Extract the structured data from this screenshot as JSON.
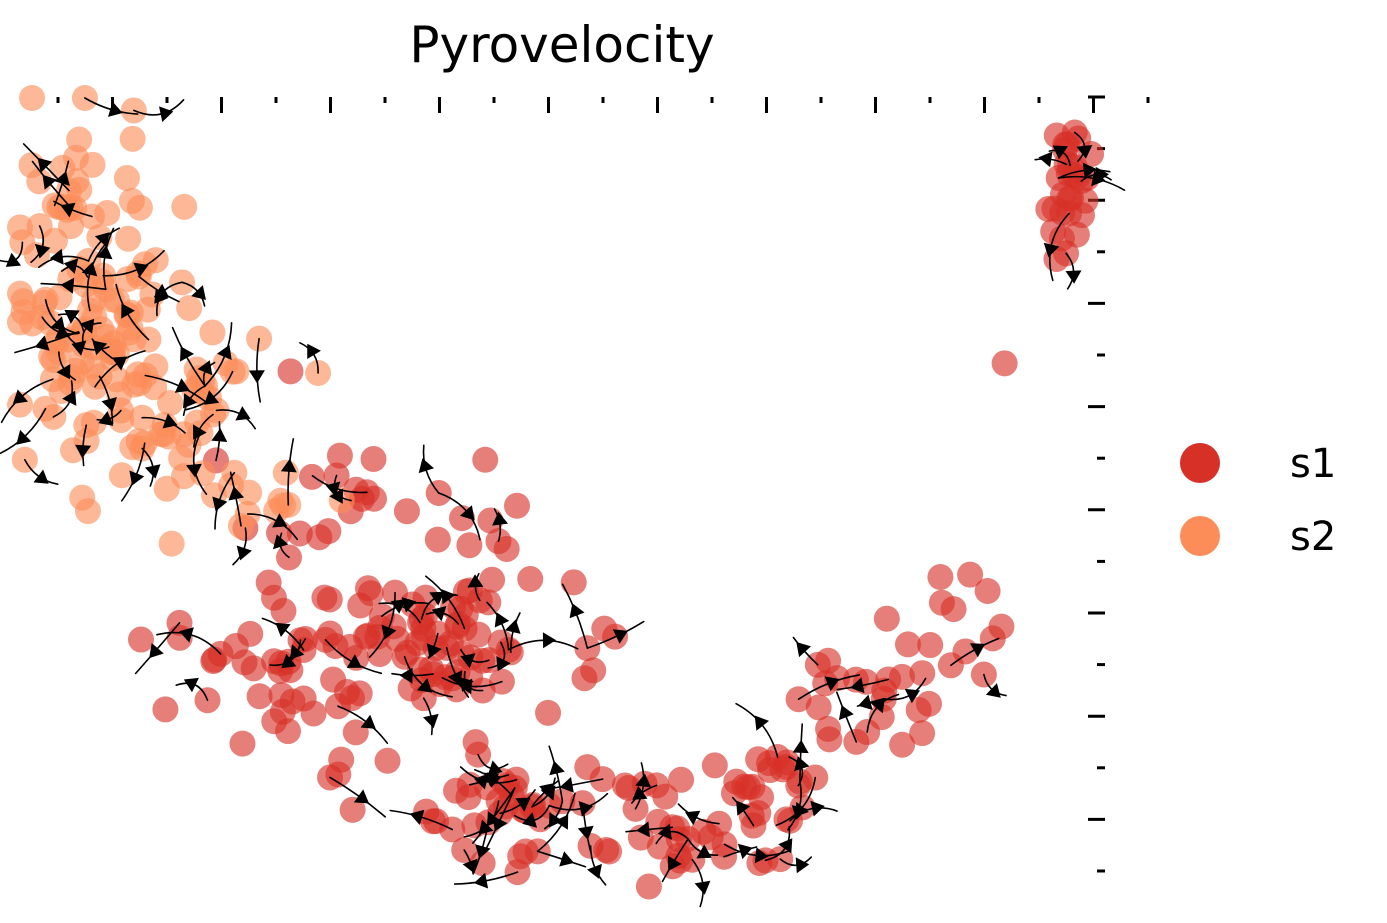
{
  "chart_data": {
    "type": "scatter",
    "title": "Pyrovelocity",
    "xlabel": "",
    "ylabel": "",
    "xlim": [
      0,
      100
    ],
    "ylim": [
      0,
      100
    ],
    "grid": false,
    "legend_position": "right",
    "overlay": "velocity streamlines with arrowheads",
    "series": [
      {
        "name": "s1",
        "color": "#d73027",
        "clusters": [
          {
            "center": [
              39,
              32
            ],
            "spread": [
              6,
              4
            ],
            "n": 70
          },
          {
            "center": [
              24,
              27
            ],
            "spread": [
              5,
              6
            ],
            "n": 45
          },
          {
            "center": [
              47,
              12
            ],
            "spread": [
              5,
              4
            ],
            "n": 40
          },
          {
            "center": [
              63,
              10
            ],
            "spread": [
              5,
              4
            ],
            "n": 35
          },
          {
            "center": [
              71,
              16
            ],
            "spread": [
              3,
              3
            ],
            "n": 15
          },
          {
            "center": [
              78,
              26
            ],
            "spread": [
              3,
              5
            ],
            "n": 25
          },
          {
            "center": [
              86,
              36
            ],
            "spread": [
              2,
              4
            ],
            "n": 10
          },
          {
            "center": [
              97,
              88
            ],
            "spread": [
              1,
              5
            ],
            "n": 30
          },
          {
            "center": [
              29,
              50
            ],
            "spread": [
              4,
              3
            ],
            "n": 18
          },
          {
            "center": [
              42,
              47
            ],
            "spread": [
              2,
              2
            ],
            "n": 6
          }
        ],
        "points": [
          [
            43,
            55
          ],
          [
            55,
            33
          ],
          [
            91,
            67
          ],
          [
            54,
            34
          ],
          [
            25,
            66
          ]
        ]
      },
      {
        "name": "s2",
        "color": "#fc8d59",
        "clusters": [
          {
            "center": [
              6,
              75
            ],
            "spread": [
              4,
              10
            ],
            "n": 110
          },
          {
            "center": [
              13,
              60
            ],
            "spread": [
              5,
              6
            ],
            "n": 45
          },
          {
            "center": [
              22,
              49
            ],
            "spread": [
              3,
              3
            ],
            "n": 10
          }
        ],
        "points": [
          [
            6,
            100
          ],
          [
            19,
            67
          ],
          [
            20,
            66
          ]
        ]
      }
    ],
    "legend": [
      "s1",
      "s2"
    ]
  }
}
